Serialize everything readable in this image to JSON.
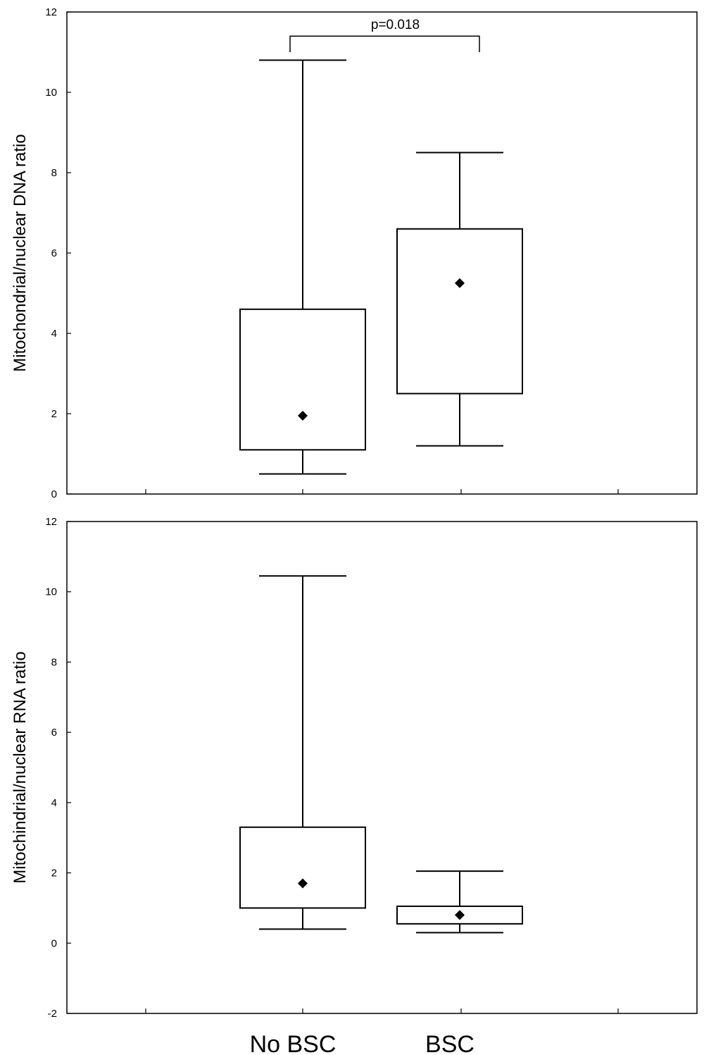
{
  "chart_data": [
    {
      "type": "box",
      "ylabel": "Mitochondrial/nuclear DNA ratio",
      "ylim": [
        0,
        12
      ],
      "yticks": [
        0,
        2,
        4,
        6,
        8,
        10,
        12
      ],
      "categories": [
        "No BSC",
        "BSC"
      ],
      "show_category_labels": false,
      "grid": false,
      "series": [
        {
          "category": "No BSC",
          "whisker_low": 0.5,
          "q1": 1.1,
          "median": 1.95,
          "q3": 4.6,
          "whisker_high": 10.8
        },
        {
          "category": "BSC",
          "whisker_low": 1.2,
          "q1": 2.5,
          "median": 5.25,
          "q3": 6.6,
          "whisker_high": 8.5
        }
      ],
      "annotation": {
        "text": "p=0.018",
        "from": "No BSC",
        "to": "BSC",
        "bracket_y": 11.4,
        "left_drop_y": 11.0,
        "right_drop_y": 11.0
      }
    },
    {
      "type": "box",
      "ylabel": "Mitochindrial/nuclear RNA ratio",
      "ylim": [
        -2,
        12
      ],
      "yticks": [
        -2,
        0,
        2,
        4,
        6,
        8,
        10,
        12
      ],
      "categories": [
        "No BSC",
        "BSC"
      ],
      "show_category_labels": true,
      "grid": false,
      "series": [
        {
          "category": "No BSC",
          "whisker_low": 0.4,
          "q1": 1.0,
          "median": 1.7,
          "q3": 3.3,
          "whisker_high": 10.45
        },
        {
          "category": "BSC",
          "whisker_low": 0.3,
          "q1": 0.55,
          "median": 0.8,
          "q3": 1.05,
          "whisker_high": 2.05
        }
      ]
    }
  ]
}
